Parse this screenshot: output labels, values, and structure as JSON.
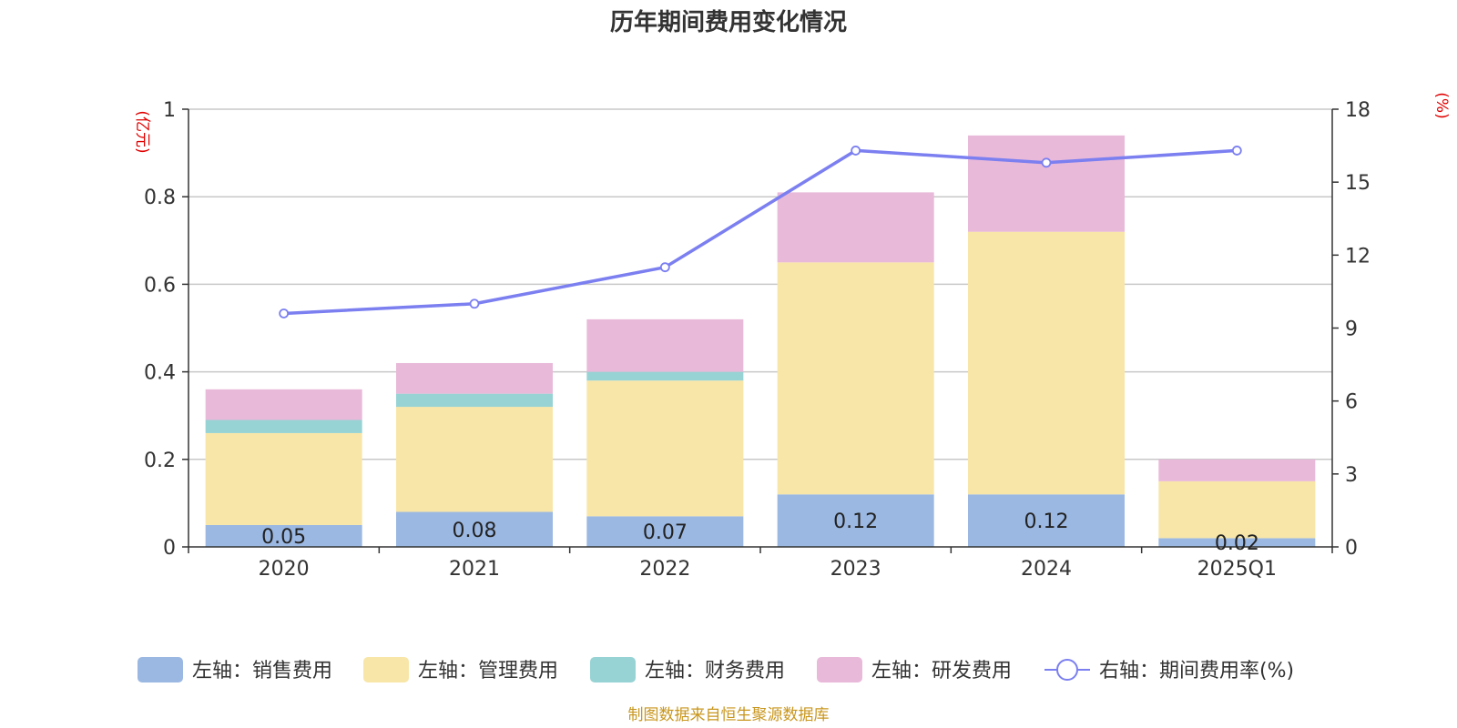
{
  "title": "历年期间费用变化情况",
  "left_unit": "(亿元)",
  "right_unit": "(%)",
  "source": "制图数据来自恒生聚源数据库",
  "chart_data": {
    "type": "bar",
    "stacked": true,
    "categories": [
      "2020",
      "2021",
      "2022",
      "2023",
      "2024",
      "2025Q1"
    ],
    "left_axis": {
      "min": 0,
      "max": 1,
      "ticks": [
        0,
        0.2,
        0.4,
        0.6,
        0.8,
        1
      ]
    },
    "right_axis": {
      "min": 0,
      "max": 18,
      "ticks": [
        0,
        3,
        6,
        9,
        12,
        15,
        18
      ]
    },
    "grid": true,
    "legend_position": "bottom",
    "series": [
      {
        "name": "左轴：销售费用",
        "axis": "left",
        "kind": "bar",
        "color": "#9bb8e2",
        "values": [
          0.05,
          0.08,
          0.07,
          0.12,
          0.12,
          0.02
        ],
        "labels": [
          "0.05",
          "0.08",
          "0.07",
          "0.12",
          "0.12",
          "0.02"
        ]
      },
      {
        "name": "左轴：管理费用",
        "axis": "left",
        "kind": "bar",
        "color": "#f8e6a8",
        "values": [
          0.21,
          0.24,
          0.31,
          0.53,
          0.6,
          0.13
        ]
      },
      {
        "name": "左轴：财务费用",
        "axis": "left",
        "kind": "bar",
        "color": "#97d3d4",
        "values": [
          0.03,
          0.03,
          0.02,
          0.0,
          0.0,
          0.0
        ]
      },
      {
        "name": "左轴：研发费用",
        "axis": "left",
        "kind": "bar",
        "color": "#e8b9d9",
        "values": [
          0.07,
          0.07,
          0.12,
          0.16,
          0.22,
          0.05
        ]
      },
      {
        "name": "右轴：期间费用率(%)",
        "axis": "right",
        "kind": "line",
        "color": "#7b7ff0",
        "values": [
          9.6,
          10.0,
          11.5,
          16.3,
          15.8,
          16.3
        ]
      }
    ]
  }
}
